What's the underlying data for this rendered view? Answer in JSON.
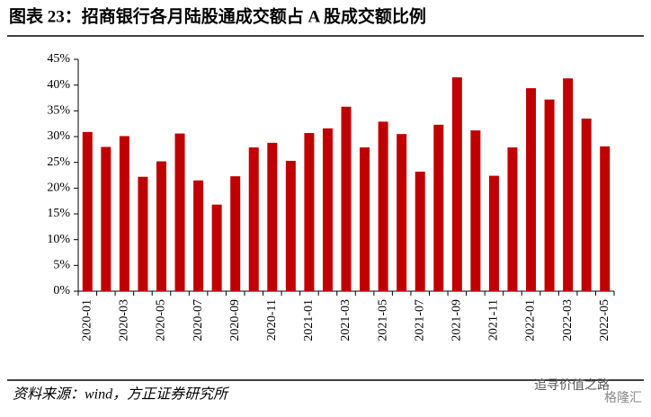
{
  "chart_data": {
    "type": "bar",
    "title": "图表 23：招商银行各月陆股通成交额占 A 股成交额比例",
    "source": "资料来源：wind，方正证券研究所",
    "watermark": "追寻价值之路",
    "watermark_brand": "格隆汇",
    "categories": [
      "2020-01",
      null,
      "2020-03",
      null,
      "2020-05",
      null,
      "2020-07",
      null,
      "2020-09",
      null,
      "2020-11",
      null,
      "2021-01",
      null,
      "2021-03",
      null,
      "2021-05",
      null,
      "2021-07",
      null,
      "2021-09",
      null,
      "2021-11",
      null,
      "2022-01",
      null,
      "2022-03",
      null,
      "2022-05"
    ],
    "values": [
      30.9,
      28.0,
      30.1,
      22.2,
      25.2,
      30.6,
      21.5,
      16.8,
      22.3,
      27.9,
      28.8,
      25.3,
      30.7,
      31.6,
      35.8,
      27.9,
      32.9,
      30.5,
      23.2,
      32.3,
      41.5,
      31.2,
      22.4,
      27.9,
      39.4,
      37.2,
      41.3,
      33.5,
      28.1
    ],
    "color": "#c00000",
    "ylim": [
      0,
      45
    ],
    "yticks": [
      {
        "value": 0,
        "label": "0%"
      },
      {
        "value": 5,
        "label": "5%"
      },
      {
        "value": 10,
        "label": "10%"
      },
      {
        "value": 15,
        "label": "15%"
      },
      {
        "value": 20,
        "label": "20%"
      },
      {
        "value": 25,
        "label": "25%"
      },
      {
        "value": 30,
        "label": "30%"
      },
      {
        "value": 35,
        "label": "35%"
      },
      {
        "value": 40,
        "label": "40%"
      },
      {
        "value": 45,
        "label": "45%"
      }
    ]
  }
}
